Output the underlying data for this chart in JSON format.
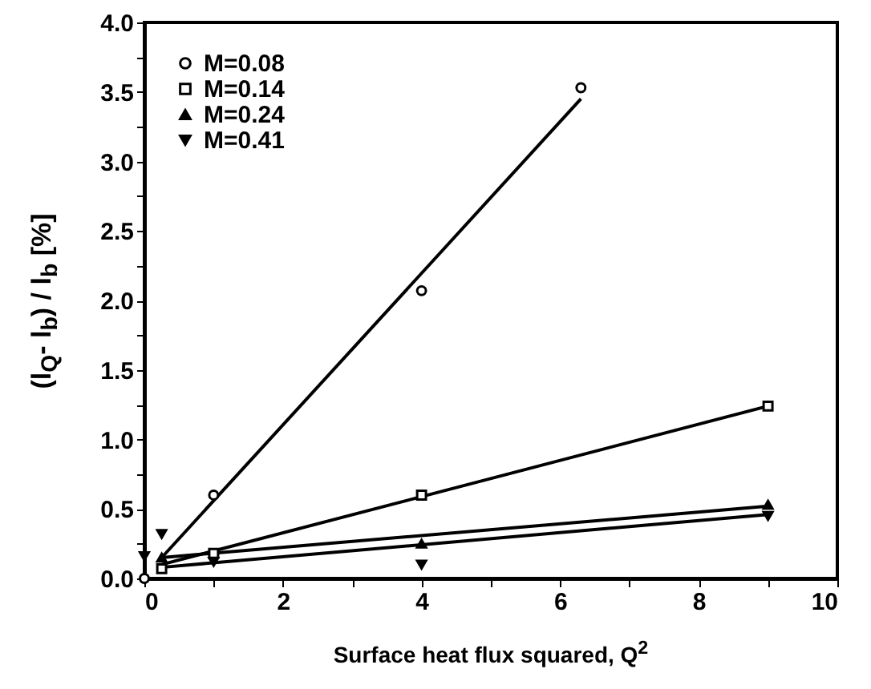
{
  "chart_data": {
    "type": "scatter",
    "xlabel": "Surface heat flux squared, Q$^{2}$",
    "ylabel": "(l$_{Q}$- l$_{b}$) / l$_{b}$ [%]",
    "xlim": [
      0,
      10
    ],
    "ylim": [
      0,
      4
    ],
    "xticks": [
      0,
      {
        "value": 1,
        "label": null
      },
      2,
      {
        "value": 3,
        "label": null
      },
      4,
      {
        "value": 5,
        "label": null
      },
      6,
      {
        "value": 7,
        "label": null
      },
      8,
      {
        "value": 9,
        "label": null
      },
      10
    ],
    "yticks": [
      {
        "value": 0,
        "label": "0.0"
      },
      {
        "value": 0.25,
        "label": null
      },
      {
        "value": 0.5,
        "label": "0.5"
      },
      {
        "value": 0.75,
        "label": null
      },
      {
        "value": 1,
        "label": "1.0"
      },
      {
        "value": 1.25,
        "label": null
      },
      {
        "value": 1.5,
        "label": "1.5"
      },
      {
        "value": 1.75,
        "label": null
      },
      {
        "value": 2,
        "label": "2.0"
      },
      {
        "value": 2.25,
        "label": null
      },
      {
        "value": 2.5,
        "label": "2.5"
      },
      {
        "value": 2.75,
        "label": null
      },
      {
        "value": 3,
        "label": "3.0"
      },
      {
        "value": 3.25,
        "label": null
      },
      {
        "value": 3.5,
        "label": "3.5"
      },
      {
        "value": 3.75,
        "label": null
      },
      {
        "value": 4,
        "label": "4.0"
      }
    ],
    "grid": false,
    "legend": "top left",
    "series": [
      {
        "name": "M=0.08",
        "color": "#000000",
        "marker": "circle",
        "x": [
          0,
          1,
          4,
          6.3
        ],
        "values": [
          0,
          0.6,
          2.07,
          3.53
        ]
      },
      {
        "name": "M=0.14",
        "color": "#000000",
        "marker": "square",
        "x": [
          0.25,
          1,
          4,
          9
        ],
        "values": [
          0.07,
          0.18,
          0.6,
          1.24
        ]
      },
      {
        "name": "M=0.24",
        "color": "#000000",
        "marker": "triangle",
        "x": [
          0.25,
          1,
          4,
          9
        ],
        "values": [
          0.15,
          null,
          0.25,
          0.53
        ]
      },
      {
        "name": "M=0.41",
        "color": "#000000",
        "marker": "triangle-down",
        "x": [
          0,
          0.25,
          1,
          4,
          9
        ],
        "values": [
          0.16,
          0.32,
          0.12,
          0.1,
          0.45
        ]
      },
      {
        "type": "line",
        "color": "#000000",
        "marker": "none",
        "line_style": "solid",
        "x": [
          0.25,
          6.3
        ],
        "values": [
          0.15,
          3.45
        ]
      },
      {
        "type": "line",
        "color": "#000000",
        "marker": "none",
        "line_style": "solid",
        "x": [
          0.25,
          9
        ],
        "values": [
          0.1,
          1.24
        ]
      },
      {
        "type": "line",
        "color": "#000000",
        "marker": "none",
        "line_style": "solid",
        "x": [
          0.25,
          9
        ],
        "values": [
          0.15,
          0.52
        ]
      },
      {
        "type": "line",
        "color": "#000000",
        "marker": "none",
        "line_style": "solid",
        "x": [
          0.25,
          9
        ],
        "values": [
          0.08,
          0.46
        ]
      }
    ]
  }
}
